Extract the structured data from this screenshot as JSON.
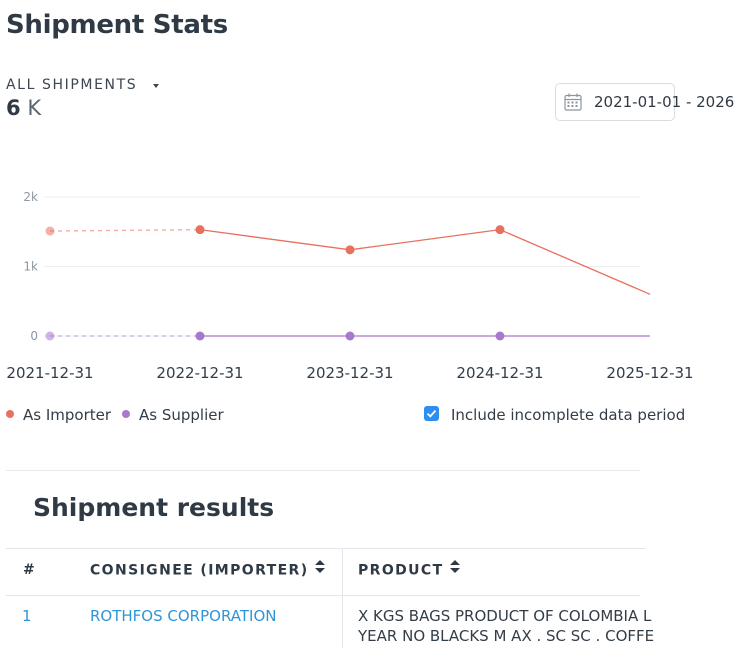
{
  "header": {
    "title": "Shipment Stats"
  },
  "filter": {
    "label": "ALL SHIPMENTS",
    "total_value": "6",
    "total_unit": "K"
  },
  "date_range": {
    "text": "2021-01-01 - 2026"
  },
  "chart_data": {
    "type": "line",
    "categories": [
      "2021-12-31",
      "2022-12-31",
      "2023-12-31",
      "2024-12-31",
      "2025-12-31"
    ],
    "y_ticks": [
      "0",
      "1k",
      "2k"
    ],
    "ylim": [
      0,
      2000
    ],
    "series": [
      {
        "name": "As Importer",
        "color": "#e8705f",
        "values": [
          1510,
          1530,
          1240,
          1530,
          600
        ],
        "incomplete_first": true
      },
      {
        "name": "As Supplier",
        "color": "#a878cf",
        "values": [
          0,
          0,
          0,
          0,
          0
        ],
        "incomplete_first": true
      }
    ],
    "grid": true,
    "legend": "bottom-left"
  },
  "legend": {
    "items": [
      {
        "label": "As Importer",
        "color": "#e8705f"
      },
      {
        "label": "As Supplier",
        "color": "#a878cf"
      }
    ],
    "incomplete_label": "Include incomplete data period"
  },
  "results": {
    "title": "Shipment results",
    "columns": [
      {
        "label": "#"
      },
      {
        "label": "CONSIGNEE (IMPORTER)"
      },
      {
        "label": "PRODUCT"
      }
    ],
    "rows": [
      {
        "index": "1",
        "consignee": "ROTHFOS CORPORATION",
        "product_line1": "X KGS BAGS PRODUCT OF COLOMBIA L",
        "product_line2": "YEAR NO BLACKS M AX . SC SC . COFFE"
      }
    ]
  }
}
